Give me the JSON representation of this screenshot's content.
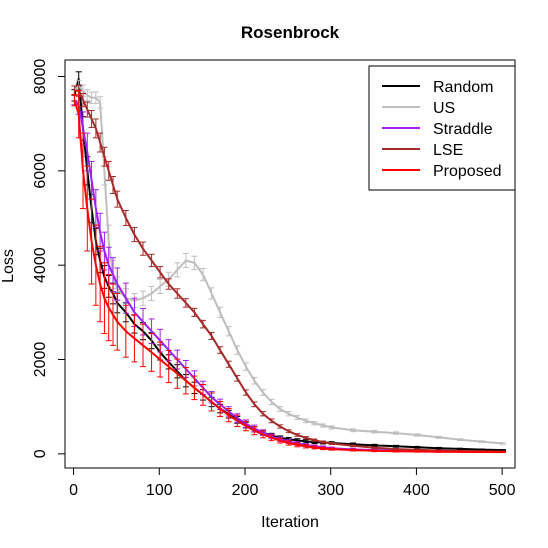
{
  "chart_data": {
    "type": "line",
    "title": "Rosenbrock",
    "xlabel": "Iteration",
    "ylabel": "Loss",
    "xlim": [
      -10,
      515
    ],
    "ylim": [
      -300,
      8350
    ],
    "xticks": [
      0,
      100,
      200,
      300,
      400,
      500
    ],
    "yticks": [
      0,
      2000,
      4000,
      6000,
      8000
    ],
    "grid": false,
    "legend_position": "top-right",
    "x": [
      1,
      6,
      11,
      16,
      21,
      26,
      31,
      36,
      41,
      46,
      51,
      61,
      71,
      81,
      91,
      101,
      111,
      121,
      131,
      141,
      151,
      161,
      171,
      181,
      191,
      201,
      211,
      221,
      231,
      241,
      251,
      261,
      271,
      281,
      291,
      301,
      326,
      351,
      376,
      401,
      426,
      451,
      476,
      501
    ],
    "series": [
      {
        "name": "Random",
        "color": "#000000",
        "values": [
          7600,
          7950,
          6900,
          6000,
          5200,
          4500,
          4100,
          3750,
          3550,
          3400,
          3200,
          3000,
          2750,
          2600,
          2400,
          2150,
          1950,
          1750,
          1550,
          1400,
          1250,
          1100,
          960,
          840,
          720,
          610,
          520,
          450,
          390,
          340,
          310,
          285,
          265,
          250,
          240,
          230,
          205,
          180,
          160,
          140,
          120,
          105,
          90,
          80
        ],
        "errors": [
          120,
          150,
          250,
          300,
          300,
          280,
          260,
          240,
          230,
          220,
          210,
          200,
          190,
          180,
          170,
          160,
          150,
          140,
          130,
          120,
          110,
          100,
          90,
          80,
          70,
          60,
          55,
          50,
          45,
          40,
          38,
          36,
          34,
          32,
          30,
          28,
          25,
          22,
          20,
          18,
          16,
          14,
          12,
          10
        ]
      },
      {
        "name": "US",
        "color": "#bebebe",
        "values": [
          7700,
          7800,
          7700,
          7600,
          7550,
          7550,
          7450,
          6000,
          4500,
          3800,
          3500,
          3300,
          3250,
          3300,
          3400,
          3550,
          3700,
          3900,
          4100,
          4050,
          3800,
          3400,
          3000,
          2600,
          2200,
          1850,
          1550,
          1300,
          1100,
          950,
          850,
          770,
          700,
          650,
          600,
          560,
          500,
          470,
          440,
          400,
          350,
          300,
          260,
          220
        ],
        "errors": [
          100,
          120,
          120,
          120,
          120,
          120,
          120,
          300,
          350,
          300,
          250,
          200,
          150,
          150,
          150,
          150,
          150,
          150,
          150,
          140,
          130,
          120,
          110,
          100,
          90,
          80,
          70,
          60,
          55,
          50,
          45,
          40,
          38,
          36,
          34,
          32,
          30,
          28,
          26,
          24,
          22,
          20,
          18,
          16
        ]
      },
      {
        "name": "Straddle",
        "color": "#a020f0",
        "values": [
          7500,
          7400,
          6900,
          6400,
          5800,
          5200,
          4700,
          4300,
          4000,
          3800,
          3600,
          3300,
          3000,
          2800,
          2600,
          2400,
          2200,
          2000,
          1800,
          1600,
          1400,
          1200,
          1050,
          900,
          760,
          640,
          540,
          450,
          370,
          310,
          260,
          220,
          190,
          160,
          140,
          120,
          95,
          80,
          70,
          60,
          55,
          50,
          45,
          40
        ],
        "errors": [
          100,
          200,
          350,
          400,
          400,
          400,
          400,
          400,
          380,
          360,
          340,
          320,
          300,
          280,
          260,
          240,
          220,
          200,
          180,
          160,
          140,
          120,
          110,
          100,
          90,
          80,
          70,
          60,
          50,
          45,
          40,
          35,
          30,
          28,
          26,
          24,
          22,
          20,
          18,
          16,
          14,
          12,
          10,
          8
        ]
      },
      {
        "name": "LSE",
        "color": "#a52a2a",
        "values": [
          7700,
          7700,
          7500,
          7300,
          7100,
          6900,
          6600,
          6300,
          6000,
          5700,
          5400,
          5000,
          4650,
          4350,
          4100,
          3850,
          3600,
          3400,
          3200,
          3000,
          2750,
          2500,
          2200,
          1900,
          1600,
          1300,
          1050,
          850,
          700,
          580,
          480,
          400,
          340,
          290,
          250,
          220,
          170,
          130,
          100,
          85,
          70,
          60,
          55,
          50
        ],
        "errors": [
          100,
          120,
          140,
          160,
          180,
          200,
          200,
          200,
          200,
          180,
          170,
          160,
          150,
          140,
          130,
          120,
          110,
          100,
          90,
          85,
          80,
          75,
          70,
          65,
          60,
          55,
          50,
          45,
          40,
          35,
          30,
          28,
          26,
          24,
          22,
          20,
          18,
          16,
          14,
          12,
          10,
          8,
          8,
          8
        ]
      },
      {
        "name": "Proposed",
        "color": "#ff0000",
        "values": [
          7500,
          7200,
          6000,
          5200,
          4500,
          4000,
          3600,
          3300,
          3100,
          2950,
          2800,
          2600,
          2450,
          2300,
          2150,
          2000,
          1850,
          1700,
          1550,
          1400,
          1250,
          1100,
          950,
          820,
          700,
          590,
          490,
          410,
          340,
          280,
          230,
          190,
          160,
          135,
          115,
          100,
          80,
          65,
          55,
          50,
          45,
          42,
          40,
          38
        ],
        "errors": [
          120,
          500,
          800,
          900,
          900,
          850,
          800,
          750,
          700,
          650,
          600,
          550,
          500,
          450,
          400,
          370,
          340,
          310,
          280,
          250,
          220,
          190,
          160,
          140,
          120,
          100,
          85,
          70,
          60,
          50,
          45,
          40,
          35,
          30,
          25,
          22,
          20,
          18,
          16,
          14,
          12,
          10,
          8,
          8
        ]
      }
    ]
  }
}
